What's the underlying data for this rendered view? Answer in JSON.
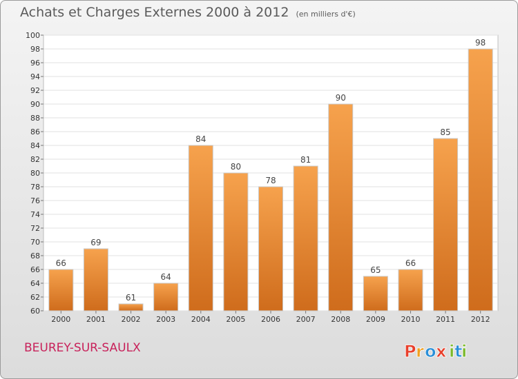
{
  "header": {
    "title": "Achats et Charges Externes 2000 à 2012",
    "subtitle": "(en milliers d'€)"
  },
  "footer": {
    "commune": "BEUREY-SUR-SAULX",
    "logo_text": "Proxiti"
  },
  "colors": {
    "bar_top": "#f6a24d",
    "bar_bottom": "#cf6c1c",
    "commune": "#c8215a",
    "logo_letters": [
      "#e8402c",
      "#f0a020",
      "#2a8fd8",
      "#e8402c",
      "#7ab828",
      "#2a8fd8",
      "#7ab828"
    ]
  },
  "chart_data": {
    "type": "bar",
    "title": "Achats et Charges Externes 2000 à 2012",
    "subtitle": "(en milliers d'€)",
    "categories": [
      "2000",
      "2001",
      "2002",
      "2003",
      "2004",
      "2005",
      "2006",
      "2007",
      "2008",
      "2009",
      "2010",
      "2011",
      "2012"
    ],
    "values": [
      66,
      69,
      61,
      64,
      84,
      80,
      78,
      81,
      90,
      65,
      66,
      85,
      98
    ],
    "xlabel": "",
    "ylabel": "",
    "ylim": [
      60,
      100
    ],
    "ytick_step": 2,
    "grid": true,
    "data_labels": true,
    "legend": "none"
  }
}
